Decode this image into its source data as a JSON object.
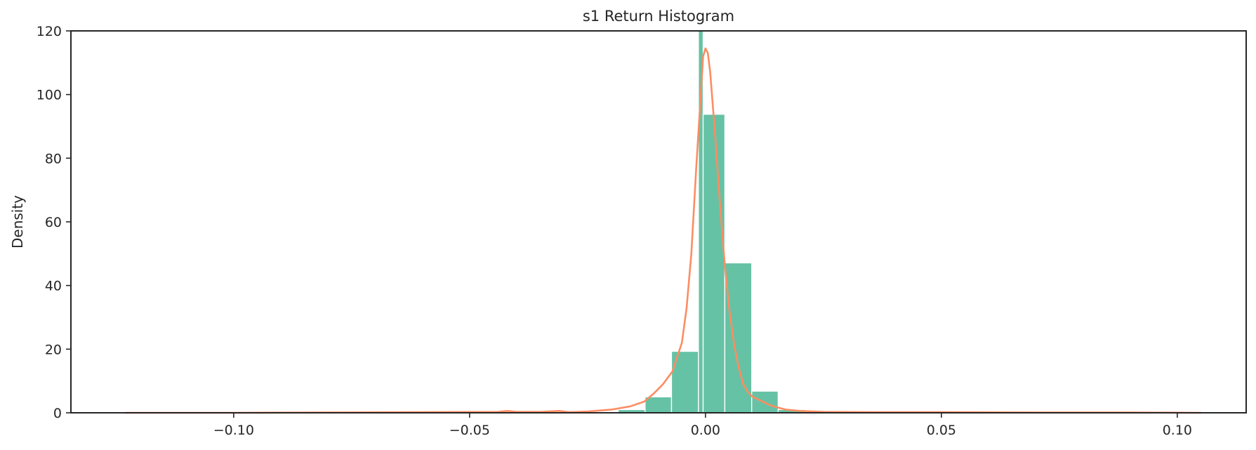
{
  "chart_data": {
    "type": "bar",
    "title": "s1 Return Histogram",
    "xlabel": "",
    "ylabel": "Density",
    "xlim": [
      -0.1345,
      0.1146
    ],
    "ylim": [
      0,
      120
    ],
    "xticks": [
      -0.1,
      -0.05,
      0.0,
      0.05,
      0.1
    ],
    "xtick_labels": [
      "−0.10",
      "−0.05",
      "0.00",
      "0.05",
      "0.10"
    ],
    "yticks": [
      0,
      20,
      40,
      60,
      80,
      100,
      120
    ],
    "ytick_labels": [
      "0",
      "20",
      "40",
      "60",
      "80",
      "100",
      "120"
    ],
    "grid": false,
    "legend": "none",
    "colors": {
      "bars": "#66c2a5",
      "kde": "#fc8d62",
      "axis": "#262626"
    },
    "bins": [
      {
        "x0": -0.0185,
        "x1": -0.0128,
        "density": 1.0
      },
      {
        "x0": -0.0128,
        "x1": -0.0072,
        "density": 5.0
      },
      {
        "x0": -0.0072,
        "x1": -0.0015,
        "density": 19.3
      },
      {
        "x0": -0.0015,
        "x1": -0.0005,
        "density": 120.0
      },
      {
        "x0": -0.0005,
        "x1": 0.0041,
        "density": 93.8
      },
      {
        "x0": 0.0041,
        "x1": 0.0098,
        "density": 47.1
      },
      {
        "x0": 0.0098,
        "x1": 0.0154,
        "density": 6.8
      },
      {
        "x0": 0.0154,
        "x1": 0.0211,
        "density": 1.0
      }
    ],
    "kde": {
      "x": [
        -0.123,
        -0.1,
        -0.08,
        -0.06,
        -0.044,
        -0.042,
        -0.04,
        -0.035,
        -0.031,
        -0.029,
        -0.025,
        -0.02,
        -0.016,
        -0.013,
        -0.011,
        -0.009,
        -0.007,
        -0.005,
        -0.004,
        -0.003,
        -0.002,
        -0.001,
        -0.0005,
        0.0,
        0.0005,
        0.001,
        0.002,
        0.003,
        0.004,
        0.005,
        0.006,
        0.007,
        0.008,
        0.009,
        0.01,
        0.012,
        0.014,
        0.017,
        0.02,
        0.025,
        0.035,
        0.05,
        0.07,
        0.09,
        0.105
      ],
      "y": [
        0.0,
        0.0,
        0.1,
        0.2,
        0.3,
        0.6,
        0.3,
        0.3,
        0.6,
        0.2,
        0.4,
        1.0,
        2.0,
        3.5,
        6.0,
        9.0,
        13.0,
        22.0,
        33.0,
        50.0,
        76.0,
        100.0,
        112.0,
        114.5,
        113.0,
        107.0,
        88.0,
        67.0,
        48.0,
        33.0,
        22.0,
        14.5,
        9.0,
        6.5,
        5.0,
        3.6,
        2.2,
        1.0,
        0.6,
        0.3,
        0.2,
        0.2,
        0.1,
        0.1,
        0.0
      ]
    }
  }
}
